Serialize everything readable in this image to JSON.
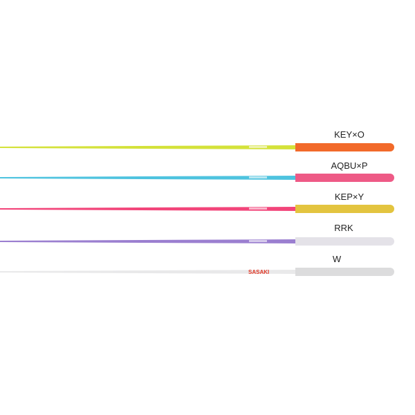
{
  "sticks": [
    {
      "label": "KEY×O",
      "shaft_color": "#d4e23a",
      "grip_color": "#f26a2a"
    },
    {
      "label": "AQBU×P",
      "shaft_color": "#4ec3df",
      "grip_color": "#ee5a86"
    },
    {
      "label": "KEP×Y",
      "shaft_color": "#f2457a",
      "grip_color": "#e3c43f"
    },
    {
      "label": "RRK",
      "shaft_color": "#9b7fd0",
      "grip_color": "#e4e2e8"
    },
    {
      "label": "W",
      "shaft_color": "#e9e9ea",
      "grip_color": "#dcdcdd"
    }
  ],
  "logo_text": "SASAKI",
  "logo_color": "#e23b2a"
}
